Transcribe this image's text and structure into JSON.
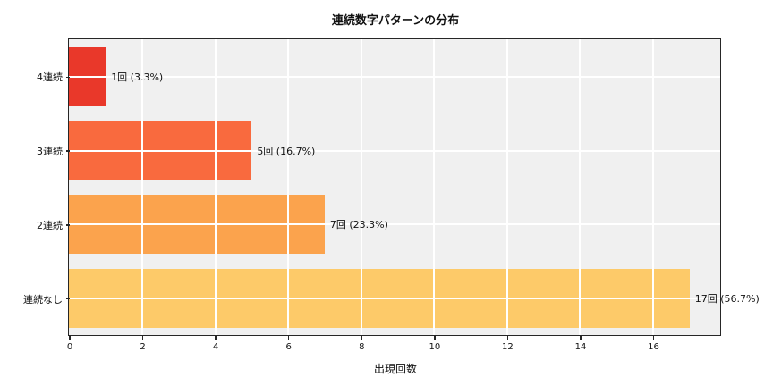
{
  "chart_data": {
    "type": "bar",
    "orientation": "horizontal",
    "title": "連続数字パターンの分布",
    "xlabel": "出現回数",
    "ylabel": "",
    "categories": [
      "4連続",
      "3連続",
      "2連続",
      "連続なし"
    ],
    "values": [
      1,
      5,
      7,
      17
    ],
    "value_labels": [
      "1回 (3.3%)",
      "5回 (16.7%)",
      "7回 (23.3%)",
      "17回 (56.7%)"
    ],
    "bar_colors": [
      "#e9382a",
      "#f96a3e",
      "#fba34d",
      "#fdca69"
    ],
    "xlim": [
      0,
      17.85
    ],
    "xticks": [
      0,
      2,
      4,
      6,
      8,
      10,
      12,
      14,
      16
    ],
    "grid": true,
    "grid_color": "#ffffff",
    "plot_bg_color": "#f0f0f0",
    "spine_color": "#262626",
    "legend_position": "none",
    "bar_height_fraction": 0.8
  }
}
